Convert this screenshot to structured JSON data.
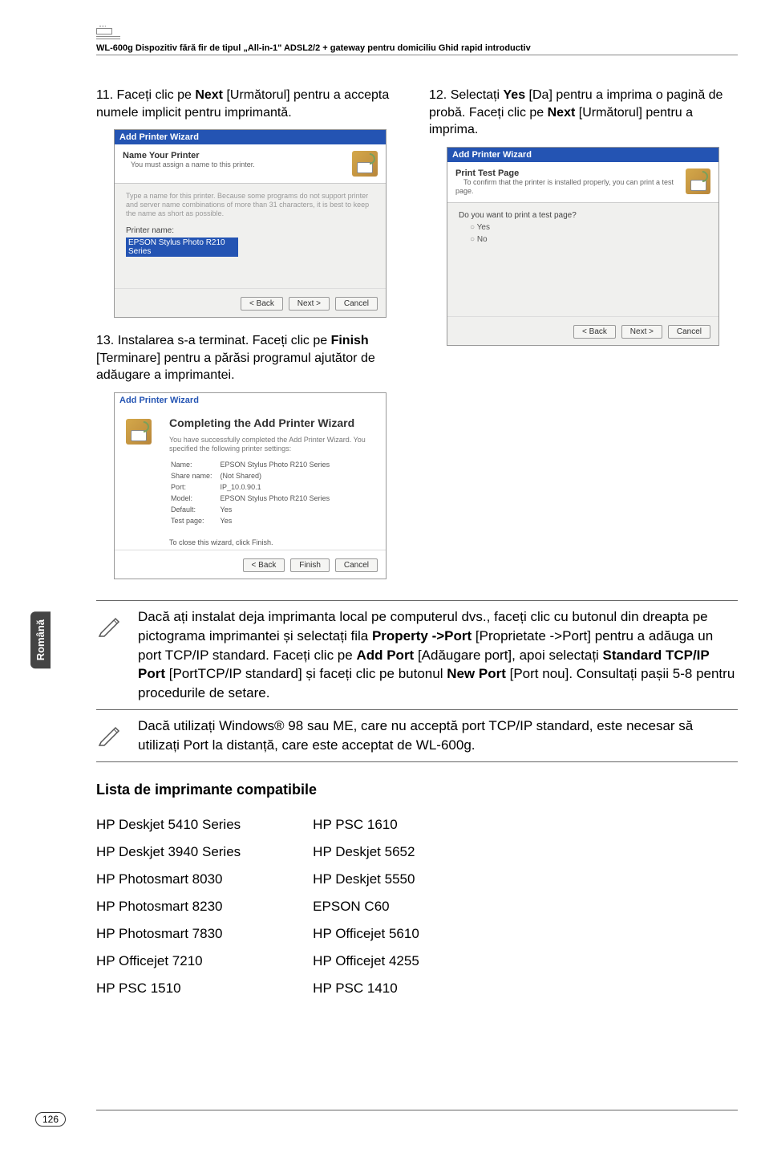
{
  "header": {
    "text": "WL-600g Dispozitiv fără fir de tipul „All-in-1\" ADSL2/2 + gateway pentru domiciliu Ghid rapid introductiv"
  },
  "step11": {
    "text_prefix": "11. Faceți clic pe ",
    "bold": "Next",
    "text_mid": " [Următorul] pentru a accepta numele implicit pentru imprimantă."
  },
  "step12": {
    "text_prefix": "12. Selectați ",
    "bold1": "Yes",
    "text_mid1": " [Da] pentru a imprima o pagină de probă. Faceți clic pe ",
    "bold2": "Next",
    "text_mid2": " [Următorul] pentru a imprima."
  },
  "step13": {
    "text_prefix": "13. Instalarea s-a terminat. Faceți clic pe ",
    "bold": "Finish",
    "text_mid": " [Terminare] pentru a părăsi programul ajutător de adăugare a imprimantei."
  },
  "dialog_name": {
    "title": "Add Printer Wizard",
    "banner_title": "Name Your Printer",
    "banner_sub": "You must assign a name to this printer.",
    "desc": "Type a name for this printer. Because some programs do not support printer and server name combinations of more than 31 characters, it is best to keep the name as short as possible.",
    "label": "Printer name:",
    "value": "EPSON Stylus Photo R210 Series",
    "btn_back": "< Back",
    "btn_next": "Next >",
    "btn_cancel": "Cancel"
  },
  "dialog_test": {
    "title": "Add Printer Wizard",
    "banner_title": "Print Test Page",
    "banner_sub": "To confirm that the printer is installed properly, you can print a test page.",
    "question": "Do you want to print a test page?",
    "opt_yes": "Yes",
    "opt_no": "No",
    "btn_back": "< Back",
    "btn_next": "Next >",
    "btn_cancel": "Cancel"
  },
  "dialog_finish": {
    "title": "Add Printer Wizard",
    "heading": "Completing the Add Printer Wizard",
    "desc": "You have successfully completed the Add Printer Wizard. You specified the following printer settings:",
    "rows": {
      "r1k": "Name:",
      "r1v": "EPSON Stylus Photo R210 Series",
      "r2k": "Share name:",
      "r2v": "(Not Shared)",
      "r3k": "Port:",
      "r3v": "IP_10.0.90.1",
      "r4k": "Model:",
      "r4v": "EPSON Stylus Photo R210 Series",
      "r5k": "Default:",
      "r5v": "Yes",
      "r6k": "Test page:",
      "r6v": "Yes"
    },
    "finish_note": "To close this wizard, click Finish.",
    "btn_back": "< Back",
    "btn_finish": "Finish",
    "btn_cancel": "Cancel"
  },
  "note1": {
    "p1a": "Dacă ați instalat deja imprimanta local pe computerul dvs., faceți clic cu butonul din dreapta pe pictograma imprimantei și selectați fila ",
    "b1": "Property ->Port",
    "p1b": " [Proprietate ->Port] pentru a adăuga un port TCP/IP standard. Faceți clic pe ",
    "b2": "Add Port",
    "p1c": " [Adăugare port], apoi selectați ",
    "b3": "Standard TCP/IP Port",
    "p1d": " [PortTCP/IP standard] și faceți clic pe butonul ",
    "b4": "New Port",
    "p1e": " [Port nou]. Consultați pașii 5-8 pentru procedurile de setare."
  },
  "note2": {
    "text": "Dacă utilizați Windows® 98 sau ME, care nu acceptă port TCP/IP standard, este necesar să utilizați Port la distanță, care este acceptat de WL-600g."
  },
  "list": {
    "title": "Lista de imprimante compatibile",
    "left": [
      "HP Deskjet 5410 Series",
      "HP Deskjet 3940 Series",
      "HP Photosmart 8030",
      "HP Photosmart 8230",
      "HP Photosmart 7830",
      "HP Officejet  7210",
      "HP PSC 1510"
    ],
    "right": [
      "HP PSC 1610",
      "HP Deskjet 5652",
      "HP Deskjet 5550",
      "EPSON C60",
      "HP Officejet 5610",
      "HP Officejet 4255",
      "HP PSC 1410"
    ]
  },
  "sidebar": "Română",
  "page": "126"
}
